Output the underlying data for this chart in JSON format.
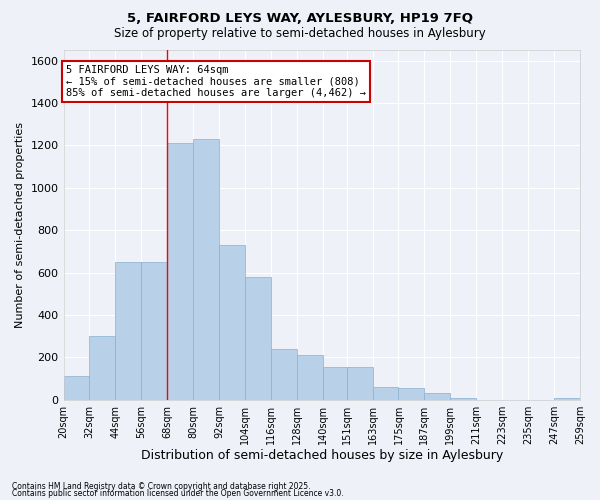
{
  "title": "5, FAIRFORD LEYS WAY, AYLESBURY, HP19 7FQ",
  "subtitle": "Size of property relative to semi-detached houses in Aylesbury",
  "xlabel": "Distribution of semi-detached houses by size in Aylesbury",
  "ylabel": "Number of semi-detached properties",
  "footnote1": "Contains HM Land Registry data © Crown copyright and database right 2025.",
  "footnote2": "Contains public sector information licensed under the Open Government Licence v3.0.",
  "annotation_line1": "5 FAIRFORD LEYS WAY: 64sqm",
  "annotation_line2": "← 15% of semi-detached houses are smaller (808)",
  "annotation_line3": "85% of semi-detached houses are larger (4,462) →",
  "bin_edges": [
    20,
    32,
    44,
    56,
    68,
    80,
    92,
    104,
    116,
    128,
    140,
    151,
    163,
    175,
    187,
    199,
    211,
    223,
    235,
    247,
    259
  ],
  "bar_heights": [
    110,
    300,
    650,
    650,
    1210,
    1230,
    730,
    580,
    240,
    210,
    155,
    155,
    60,
    55,
    30,
    10,
    0,
    0,
    0,
    10
  ],
  "bar_color": "#b8d0e8",
  "bar_edge_color": "#8ab0d0",
  "red_line_x": 68,
  "ylim": [
    0,
    1650
  ],
  "yticks": [
    0,
    200,
    400,
    600,
    800,
    1000,
    1200,
    1400,
    1600
  ],
  "background_color": "#eef2f8",
  "grid_color": "#ffffff",
  "annotation_box_color": "#ffffff",
  "annotation_border_color": "#cc0000"
}
